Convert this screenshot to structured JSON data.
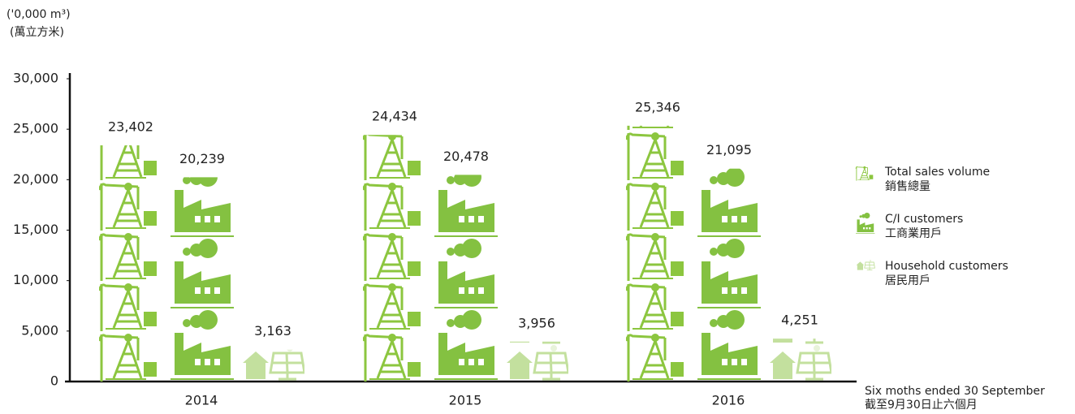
{
  "chart_data": {
    "type": "bar",
    "y_label": "('0,000 m³)",
    "y_label_zh": "(萬立方米)",
    "x_label": "Six moths ended 30 September",
    "x_label_zh": "截至9月30日止六個月",
    "categories": [
      "2014",
      "2015",
      "2016"
    ],
    "series": [
      {
        "name": "Total sales volume",
        "name_zh": "銷售總量",
        "color": "#8cc63f",
        "icon": "pump",
        "values": [
          23402,
          24434,
          25346
        ],
        "value_labels": [
          "23,402",
          "24,434",
          "25,346"
        ]
      },
      {
        "name": "C/I customers",
        "name_zh": "工商業用戶",
        "color": "#84c141",
        "icon": "factory",
        "values": [
          20239,
          20478,
          21095
        ],
        "value_labels": [
          "20,239",
          "20,478",
          "21,095"
        ]
      },
      {
        "name": "Household customers",
        "name_zh": "居民用戶",
        "color": "#c3e09e",
        "icon": "house",
        "values": [
          3163,
          3956,
          4251
        ],
        "value_labels": [
          "3,163",
          "3,956",
          "4,251"
        ]
      }
    ],
    "ylim": [
      0,
      30000
    ],
    "yticks": [
      0,
      {
        "value": 5000,
        "label": "5,000"
      },
      {
        "value": 10000,
        "label": "10,000"
      },
      {
        "value": 15000,
        "label": "15,000"
      },
      {
        "value": 20000,
        "label": "20,000"
      },
      {
        "value": 25000,
        "label": "25,000"
      },
      {
        "value": 30000,
        "label": "30,000"
      }
    ],
    "legend": "right"
  }
}
